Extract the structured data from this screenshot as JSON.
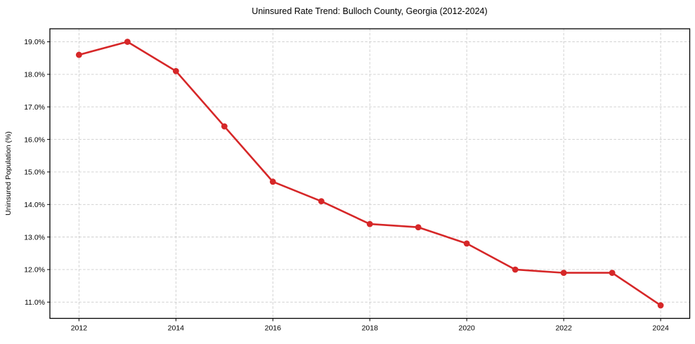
{
  "chart_data": {
    "type": "line",
    "title": "Uninsured Rate Trend: Bulloch County, Georgia (2012-2024)",
    "xlabel": "",
    "ylabel": "Uninsured Population (%)",
    "x": [
      2012,
      2013,
      2014,
      2015,
      2016,
      2017,
      2018,
      2019,
      2020,
      2021,
      2022,
      2023,
      2024
    ],
    "values": [
      18.6,
      19.0,
      18.1,
      16.4,
      14.7,
      14.1,
      13.4,
      13.3,
      12.8,
      12.0,
      11.9,
      11.9,
      10.9
    ],
    "xticks": [
      {
        "value": 2012,
        "label": "2012"
      },
      {
        "value": 2014,
        "label": "2014"
      },
      {
        "value": 2016,
        "label": "2016"
      },
      {
        "value": 2018,
        "label": "2018"
      },
      {
        "value": 2020,
        "label": "2020"
      },
      {
        "value": 2022,
        "label": "2022"
      },
      {
        "value": 2024,
        "label": "2024"
      }
    ],
    "yticks": [
      {
        "value": 11.0,
        "label": "11.0%"
      },
      {
        "value": 12.0,
        "label": "12.0%"
      },
      {
        "value": 13.0,
        "label": "13.0%"
      },
      {
        "value": 14.0,
        "label": "14.0%"
      },
      {
        "value": 15.0,
        "label": "15.0%"
      },
      {
        "value": 16.0,
        "label": "16.0%"
      },
      {
        "value": 17.0,
        "label": "17.0%"
      },
      {
        "value": 18.0,
        "label": "18.0%"
      },
      {
        "value": 19.0,
        "label": "19.0%"
      }
    ],
    "xlim": [
      2011.4,
      2024.6
    ],
    "ylim": [
      10.5,
      19.4
    ],
    "grid": true,
    "grid_style": "dashed",
    "legend": "none",
    "colors": {
      "line": "#d62728",
      "marker": "#d62728",
      "grid": "#cccccc",
      "frame": "#000000",
      "tick": "#000000",
      "text": "#000000",
      "background": "#ffffff"
    }
  }
}
